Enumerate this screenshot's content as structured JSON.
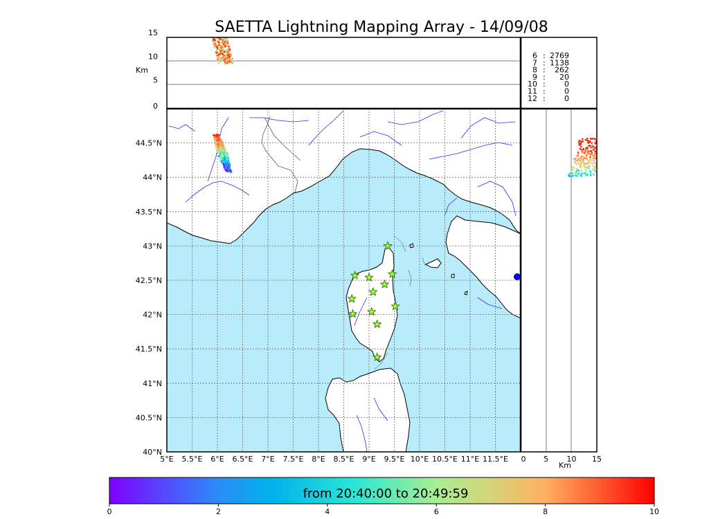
{
  "title": "SAETTA Lightning Mapping Array - 14/09/08",
  "colors": {
    "sea": "#b8ecfa",
    "land": "#ffffff",
    "river": "#2b2bff",
    "border": "#444444",
    "grid": "#666666",
    "star_fill": "#99ff33",
    "highlight": "#ff0000"
  },
  "altitude_panel": {
    "unit": "Km",
    "ticks": [
      "0",
      "5",
      "10",
      "15"
    ],
    "station_counts": [
      {
        "stations": "6",
        "count": "2769",
        "highlight": false
      },
      {
        "stations": "7",
        "count": "1138",
        "highlight": true
      },
      {
        "stations": "8",
        "count": "262",
        "highlight": false
      },
      {
        "stations": "9",
        "count": "20",
        "highlight": false
      },
      {
        "stations": "10",
        "count": "0",
        "highlight": false
      },
      {
        "stations": "11",
        "count": "0",
        "highlight": false
      },
      {
        "stations": "12",
        "count": "0",
        "highlight": false
      }
    ]
  },
  "side_panel": {
    "unit": "Km",
    "ticks": [
      "0",
      "5",
      "10",
      "15"
    ]
  },
  "map": {
    "lon_range": [
      5,
      12
    ],
    "lat_range": [
      40,
      45
    ],
    "lon_labels": [
      "5°E",
      "5.5°E",
      "6°E",
      "6.5°E",
      "7°E",
      "7.5°E",
      "8°E",
      "8.5°E",
      "9°E",
      "9.5°E",
      "10°E",
      "10.5°E",
      "11°E",
      "11.5°E"
    ],
    "lat_labels": [
      "40°N",
      "40.5°N",
      "41°N",
      "41.5°N",
      "42°N",
      "42.5°N",
      "43°N",
      "43.5°N",
      "44°N",
      "44.5°N"
    ],
    "stations": [
      {
        "lon": 9.37,
        "lat": 43.0
      },
      {
        "lon": 8.72,
        "lat": 42.57
      },
      {
        "lon": 9.0,
        "lat": 42.54
      },
      {
        "lon": 9.46,
        "lat": 42.59
      },
      {
        "lon": 9.31,
        "lat": 42.44
      },
      {
        "lon": 9.08,
        "lat": 42.33
      },
      {
        "lon": 8.66,
        "lat": 42.23
      },
      {
        "lon": 9.52,
        "lat": 42.12
      },
      {
        "lon": 9.05,
        "lat": 42.04
      },
      {
        "lon": 8.68,
        "lat": 42.01
      },
      {
        "lon": 9.16,
        "lat": 41.86
      },
      {
        "lon": 9.16,
        "lat": 41.38
      }
    ],
    "lightning_cluster": {
      "lon": 6.1,
      "lat": 44.35
    }
  },
  "colorbar": {
    "label": "from 20:40:00 to 20:49:59",
    "ticks": [
      "0",
      "2",
      "4",
      "6",
      "8",
      "10"
    ]
  }
}
